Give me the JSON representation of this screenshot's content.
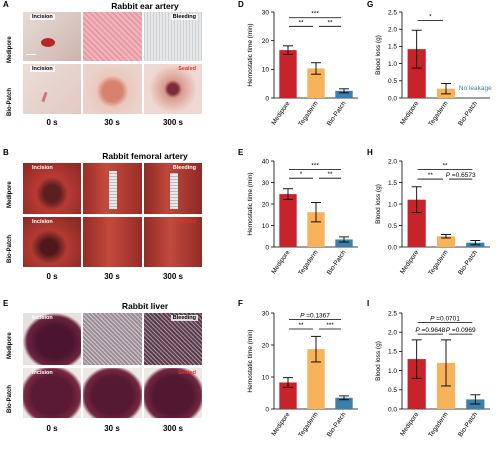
{
  "section_a": {
    "label": "A",
    "title": "Rabbit ear artery",
    "rows": [
      "Medipore",
      "Bio-Patch"
    ],
    "tags": [
      [
        "Incision",
        "",
        "Bleeding"
      ],
      [
        "Incision",
        "",
        "Sealed"
      ]
    ],
    "times": [
      "0 s",
      "30 s",
      "300 s"
    ]
  },
  "section_b": {
    "label": "B",
    "title": "Rabbit femoral artery",
    "rows": [
      "Medipore",
      "Bio-Patch"
    ],
    "tags": [
      [
        "Incision",
        "",
        "Bleeding"
      ],
      [
        "Incision",
        "",
        "Sealed"
      ]
    ],
    "times": [
      "0 s",
      "30 s",
      "300 s"
    ]
  },
  "section_e": {
    "label": "E",
    "title": "Rabbit liver",
    "rows": [
      "Medipore",
      "Bio-Patch"
    ],
    "tags": [
      [
        "Incision",
        "",
        "Bleeding"
      ],
      [
        "Incision",
        "",
        "Sealed"
      ]
    ],
    "times": [
      "0 s",
      "30 s",
      "300 s"
    ]
  },
  "colors": {
    "medipore": "#c8232b",
    "tegaderm": "#f7b25a",
    "biopatch": "#3b80a8",
    "sealed": "#e5312b",
    "tag_text": "#000000"
  },
  "chart_data": [
    {
      "panel": "D",
      "type": "bar",
      "categories": [
        "Medipore",
        "Tegaderm",
        "Bio-Patch"
      ],
      "values": [
        16.7,
        10.3,
        2.5
      ],
      "errors": [
        1.5,
        2.0,
        0.7
      ],
      "ylabel": "Hemostatic time (min)",
      "ylim": [
        0,
        30
      ],
      "yticks": [
        0,
        10,
        20,
        30
      ],
      "annotations": [
        {
          "text": "***",
          "from": 0,
          "to": 2,
          "y": 28
        },
        {
          "text": "**",
          "from": 0,
          "to": 1,
          "y": 25
        },
        {
          "text": "**",
          "from": 1,
          "to": 2,
          "y": 25
        }
      ]
    },
    {
      "panel": "G",
      "type": "bar",
      "categories": [
        "Medipore",
        "Tegaderm",
        "Bio-Patch"
      ],
      "values": [
        1.42,
        0.27,
        0
      ],
      "errors": [
        0.55,
        0.15,
        0
      ],
      "ylabel": "Blood loss (g)",
      "ylim": [
        0,
        2.5
      ],
      "yticks": [
        0,
        0.5,
        1.0,
        1.5,
        2.0,
        2.5
      ],
      "bar_text": {
        "index": 2,
        "text": "No leakage"
      },
      "annotations": [
        {
          "text": "*",
          "from": 0,
          "to": 1,
          "y": 2.25
        }
      ]
    },
    {
      "panel": "E",
      "type": "bar",
      "categories": [
        "Medipore",
        "Tegaderm",
        "Bio-Patch"
      ],
      "values": [
        24.6,
        16.2,
        3.5
      ],
      "errors": [
        2.5,
        4.5,
        1.2
      ],
      "ylabel": "Hemostatic time (min)",
      "ylim": [
        0,
        40
      ],
      "yticks": [
        0,
        10,
        20,
        30,
        40
      ],
      "annotations": [
        {
          "text": "***",
          "from": 0,
          "to": 2,
          "y": 36
        },
        {
          "text": "*",
          "from": 0,
          "to": 1,
          "y": 32
        },
        {
          "text": "**",
          "from": 1,
          "to": 2,
          "y": 32
        }
      ]
    },
    {
      "panel": "H",
      "type": "bar",
      "categories": [
        "Medipore",
        "Tegaderm",
        "Bio-Patch"
      ],
      "values": [
        1.1,
        0.25,
        0.1
      ],
      "errors": [
        0.3,
        0.04,
        0.05
      ],
      "ylabel": "Blood loss (g)",
      "ylim": [
        0,
        2.0
      ],
      "yticks": [
        0,
        0.5,
        1.0,
        1.5,
        2.0
      ],
      "annotations": [
        {
          "text": "**",
          "from": 0,
          "to": 2,
          "y": 1.8
        },
        {
          "text": "**",
          "from": 0,
          "to": 1,
          "y": 1.58
        },
        {
          "text": "P =0.6573",
          "from": 1,
          "to": 2,
          "y": 1.58,
          "italic_p": true
        }
      ]
    },
    {
      "panel": "F",
      "type": "bar",
      "categories": [
        "Medipore",
        "Tegaderm",
        "Bio-Patch"
      ],
      "values": [
        8.3,
        18.7,
        3.5
      ],
      "errors": [
        1.5,
        4.0,
        0.6
      ],
      "ylabel": "Hemostatic time (min)",
      "ylim": [
        0,
        30
      ],
      "yticks": [
        0,
        10,
        20,
        30
      ],
      "annotations": [
        {
          "text": "P =0.1367",
          "from": 0,
          "to": 2,
          "y": 28,
          "italic_p": true
        },
        {
          "text": "**",
          "from": 0,
          "to": 1,
          "y": 25
        },
        {
          "text": "***",
          "from": 1,
          "to": 2,
          "y": 25
        }
      ]
    },
    {
      "panel": "I",
      "type": "bar",
      "categories": [
        "Medipore",
        "Tegaderm",
        "Bio-Patch"
      ],
      "values": [
        1.3,
        1.2,
        0.25
      ],
      "errors": [
        0.5,
        0.6,
        0.12
      ],
      "ylabel": "Blood loss (g)",
      "ylim": [
        0,
        2.5
      ],
      "yticks": [
        0,
        0.5,
        1.0,
        1.5,
        2.0,
        2.5
      ],
      "annotations": [
        {
          "text": "P =0.0701",
          "from": 0,
          "to": 2,
          "y": 2.25,
          "italic_p": true
        },
        {
          "text": "P =0.9648",
          "from": 0,
          "to": 1,
          "y": 1.95,
          "italic_p": true
        },
        {
          "text": "P =0.0969",
          "from": 1,
          "to": 2,
          "y": 1.95,
          "italic_p": true
        }
      ]
    }
  ]
}
